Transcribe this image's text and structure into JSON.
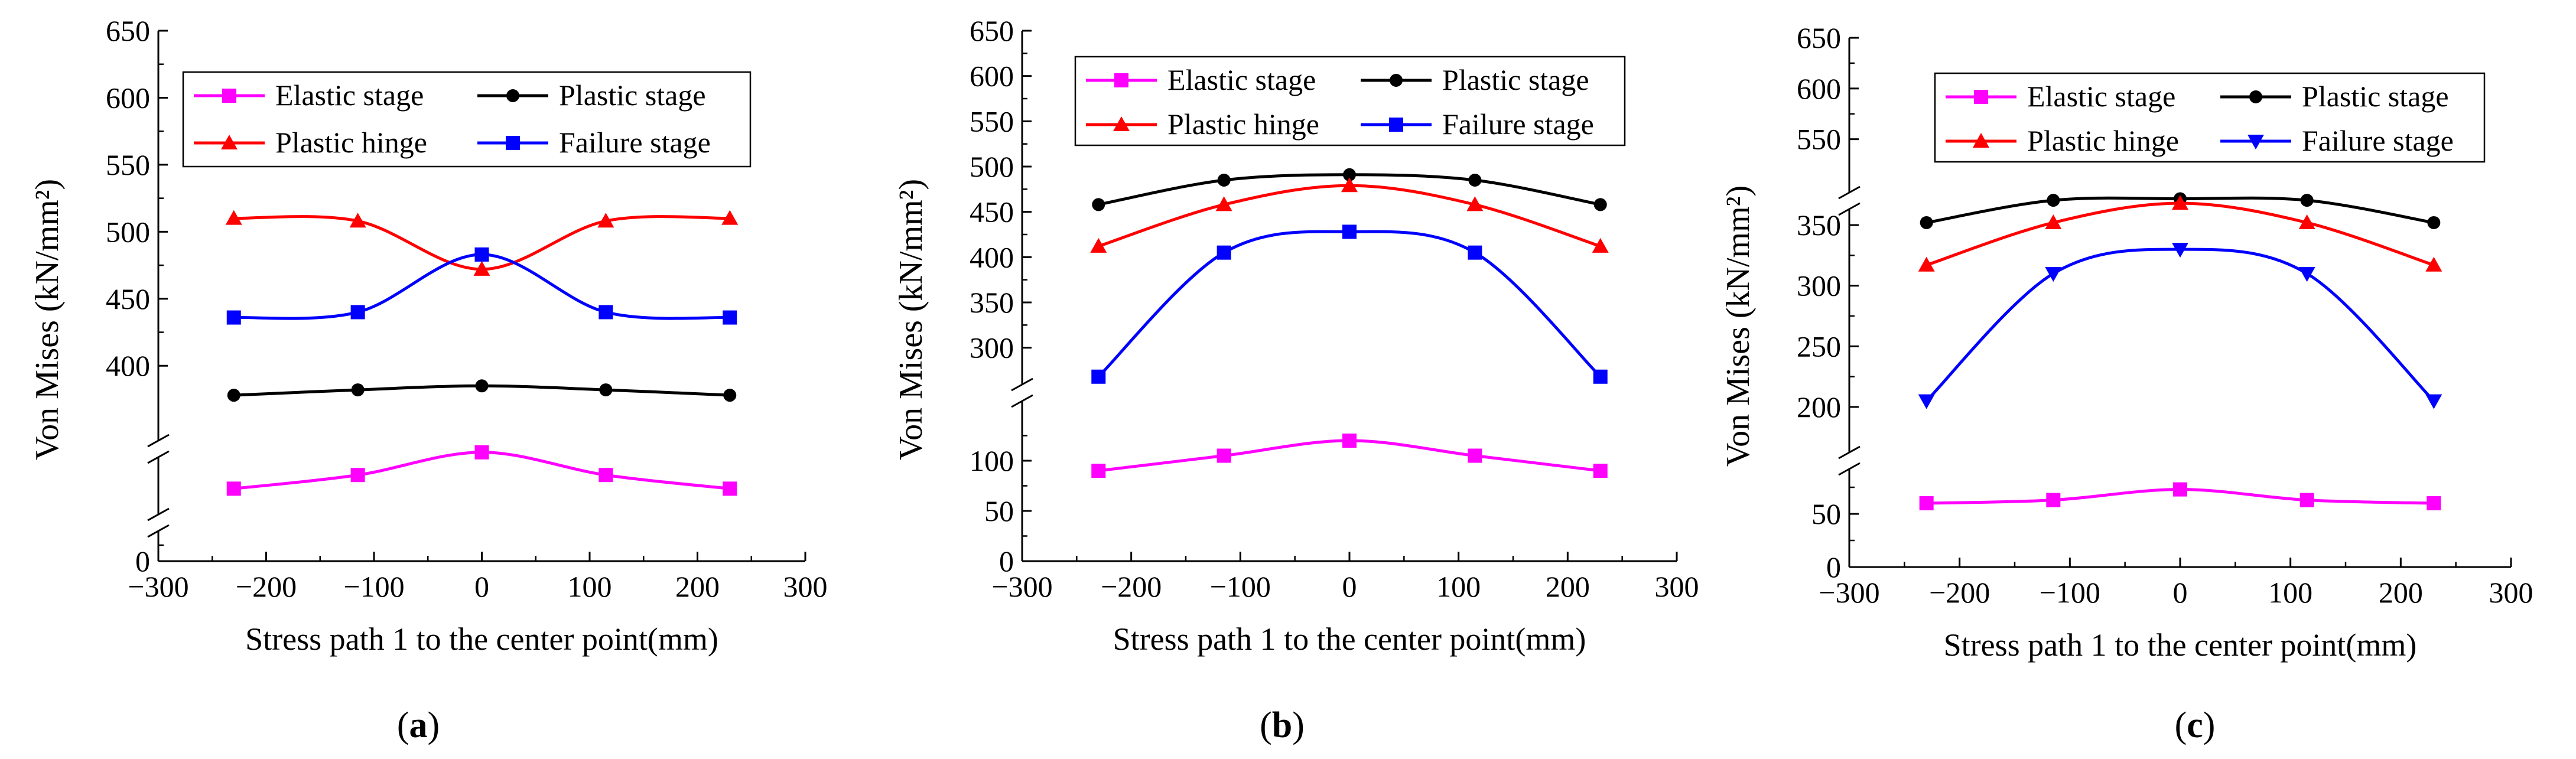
{
  "colors": {
    "elastic": "#ff00ff",
    "plastic": "#000000",
    "hinge": "#ff0000",
    "failure": "#0000ff",
    "axis": "#000000"
  },
  "chart_data": [
    {
      "type": "line",
      "panel_label": "a",
      "xlabel": "Stress path 1 to the center point(mm)",
      "ylabel": "Von Mises (kN/mm²)",
      "xlim": [
        -300,
        300
      ],
      "xticks": [
        -300,
        -200,
        -100,
        0,
        100,
        200,
        300
      ],
      "x": [
        -230,
        -115,
        0,
        115,
        230
      ],
      "y_broken_axis": true,
      "yticks_labeled": [
        0,
        400,
        450,
        500,
        550,
        600,
        650
      ],
      "series": [
        {
          "name": "Elastic stage",
          "marker": "square",
          "values": [
            120,
            144,
            184,
            144,
            120
          ]
        },
        {
          "name": "Plastic stage",
          "marker": "circle",
          "values": [
            378,
            382,
            385,
            382,
            378
          ]
        },
        {
          "name": "Plastic hinge",
          "marker": "triangle-up",
          "values": [
            510,
            508,
            472,
            508,
            510
          ]
        },
        {
          "name": "Failure stage",
          "marker": "square",
          "values": [
            436,
            440,
            483,
            440,
            436
          ]
        }
      ],
      "legend": "top-left, two columns",
      "grid": false
    },
    {
      "type": "line",
      "panel_label": "b",
      "xlabel": "Stress path 1 to the center point(mm)",
      "ylabel": "Von Mises (kN/mm²)",
      "xlim": [
        -300,
        300
      ],
      "xticks": [
        -300,
        -200,
        -100,
        0,
        100,
        200,
        300
      ],
      "x": [
        -230,
        -115,
        0,
        115,
        230
      ],
      "y_broken_axis": true,
      "yticks_labeled": [
        0,
        50,
        100,
        300,
        350,
        400,
        450,
        500,
        550,
        600,
        650
      ],
      "series": [
        {
          "name": "Elastic stage",
          "marker": "square",
          "values": [
            90,
            105,
            120,
            105,
            90
          ]
        },
        {
          "name": "Plastic stage",
          "marker": "circle",
          "values": [
            458,
            485,
            491,
            485,
            458
          ]
        },
        {
          "name": "Plastic hinge",
          "marker": "triangle-up",
          "values": [
            412,
            458,
            479,
            458,
            412
          ]
        },
        {
          "name": "Failure stage",
          "marker": "square",
          "values": [
            268,
            405,
            428,
            405,
            268
          ]
        }
      ],
      "legend": "top, two columns",
      "grid": false
    },
    {
      "type": "line",
      "panel_label": "c",
      "xlabel": "Stress path 1 to the center point(mm)",
      "ylabel": "Von Mises (kN/mm²)",
      "xlim": [
        -300,
        300
      ],
      "xticks": [
        -300,
        -200,
        -100,
        0,
        100,
        200,
        300
      ],
      "x": [
        -230,
        -115,
        0,
        115,
        230
      ],
      "y_broken_axis": true,
      "yticks_labeled": [
        0,
        50,
        200,
        250,
        300,
        350,
        550,
        600,
        650
      ],
      "series": [
        {
          "name": "Elastic stage",
          "marker": "square",
          "values": [
            60,
            63,
            73,
            63,
            60
          ]
        },
        {
          "name": "Plastic stage",
          "marker": "circle",
          "values": [
            352,
            372,
            378,
            372,
            352
          ]
        },
        {
          "name": "Plastic hinge",
          "marker": "triangle-up",
          "values": [
            317,
            352,
            368,
            352,
            317
          ]
        },
        {
          "name": "Failure stage",
          "marker": "triangle-down",
          "values": [
            205,
            310,
            330,
            310,
            205
          ]
        }
      ],
      "legend": "top, two columns",
      "grid": false
    }
  ]
}
